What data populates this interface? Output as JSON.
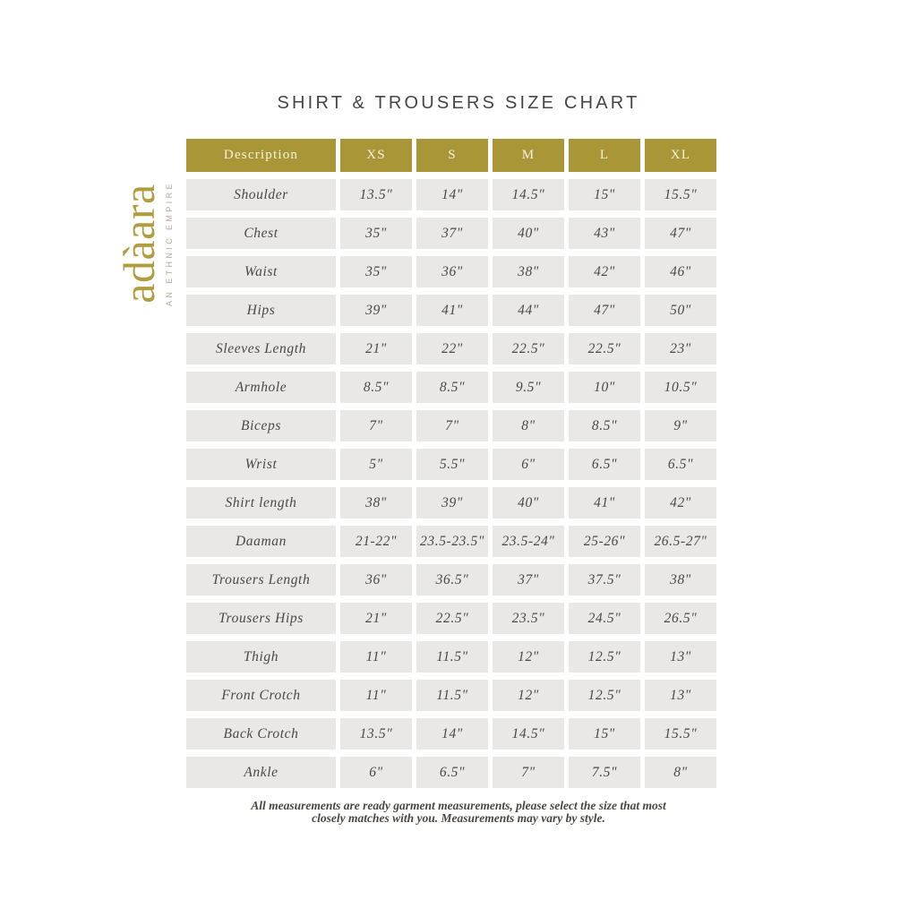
{
  "page": {
    "title": "SHIRT & TROUSERS SIZE CHART"
  },
  "logo": {
    "brand": "adàara",
    "tagline": "AN ETHNIC EMPIRE"
  },
  "footer": {
    "line1": "All measurements are ready garment measurements, please select the size that most",
    "line2": "closely matches with you. Measurements may vary by style."
  },
  "colors": {
    "header_bg": "#a99737",
    "header_text": "#f7f2e0",
    "cell_bg": "#e9e8e7",
    "body_text": "#4d4742",
    "title_text": "#4b4344",
    "logo_gold": "#b09d3f",
    "tagline_gray": "#b3ab99",
    "page_bg": "#ffffff"
  },
  "chart_data": {
    "type": "table",
    "title": "SHIRT & TROUSERS SIZE CHART",
    "columns": [
      "Description",
      "XS",
      "S",
      "M",
      "L",
      "XL"
    ],
    "rows": [
      {
        "label": "Shoulder",
        "values": [
          "13.5\"",
          "14\"",
          "14.5\"",
          "15\"",
          "15.5\""
        ]
      },
      {
        "label": "Chest",
        "values": [
          "35\"",
          "37\"",
          "40\"",
          "43\"",
          "47\""
        ]
      },
      {
        "label": "Waist",
        "values": [
          "35\"",
          "36\"",
          "38\"",
          "42\"",
          "46\""
        ]
      },
      {
        "label": "Hips",
        "values": [
          "39\"",
          "41\"",
          "44\"",
          "47\"",
          "50\""
        ]
      },
      {
        "label": "Sleeves Length",
        "values": [
          "21\"",
          "22\"",
          "22.5\"",
          "22.5\"",
          "23\""
        ]
      },
      {
        "label": "Armhole",
        "values": [
          "8.5\"",
          "8.5\"",
          "9.5\"",
          "10\"",
          "10.5\""
        ]
      },
      {
        "label": "Biceps",
        "values": [
          "7\"",
          "7\"",
          "8\"",
          "8.5\"",
          "9\""
        ]
      },
      {
        "label": "Wrist",
        "values": [
          "5\"",
          "5.5\"",
          "6\"",
          "6.5\"",
          "6.5\""
        ]
      },
      {
        "label": "Shirt length",
        "values": [
          "38\"",
          "39\"",
          "40\"",
          "41\"",
          "42\""
        ]
      },
      {
        "label": "Daaman",
        "values": [
          "21-22\"",
          "23.5-23.5\"",
          "23.5-24\"",
          "25-26\"",
          "26.5-27\""
        ]
      },
      {
        "label": "Trousers Length",
        "values": [
          "36\"",
          "36.5\"",
          "37\"",
          "37.5\"",
          "38\""
        ]
      },
      {
        "label": "Trousers Hips",
        "values": [
          "21\"",
          "22.5\"",
          "23.5\"",
          "24.5\"",
          "26.5\""
        ]
      },
      {
        "label": "Thigh",
        "values": [
          "11\"",
          "11.5\"",
          "12\"",
          "12.5\"",
          "13\""
        ]
      },
      {
        "label": "Front Crotch",
        "values": [
          "11\"",
          "11.5\"",
          "12\"",
          "12.5\"",
          "13\""
        ]
      },
      {
        "label": "Back Crotch",
        "values": [
          "13.5\"",
          "14\"",
          "14.5\"",
          "15\"",
          "15.5\""
        ]
      },
      {
        "label": "Ankle",
        "values": [
          "6\"",
          "6.5\"",
          "7\"",
          "7.5\"",
          "8\""
        ]
      }
    ]
  }
}
